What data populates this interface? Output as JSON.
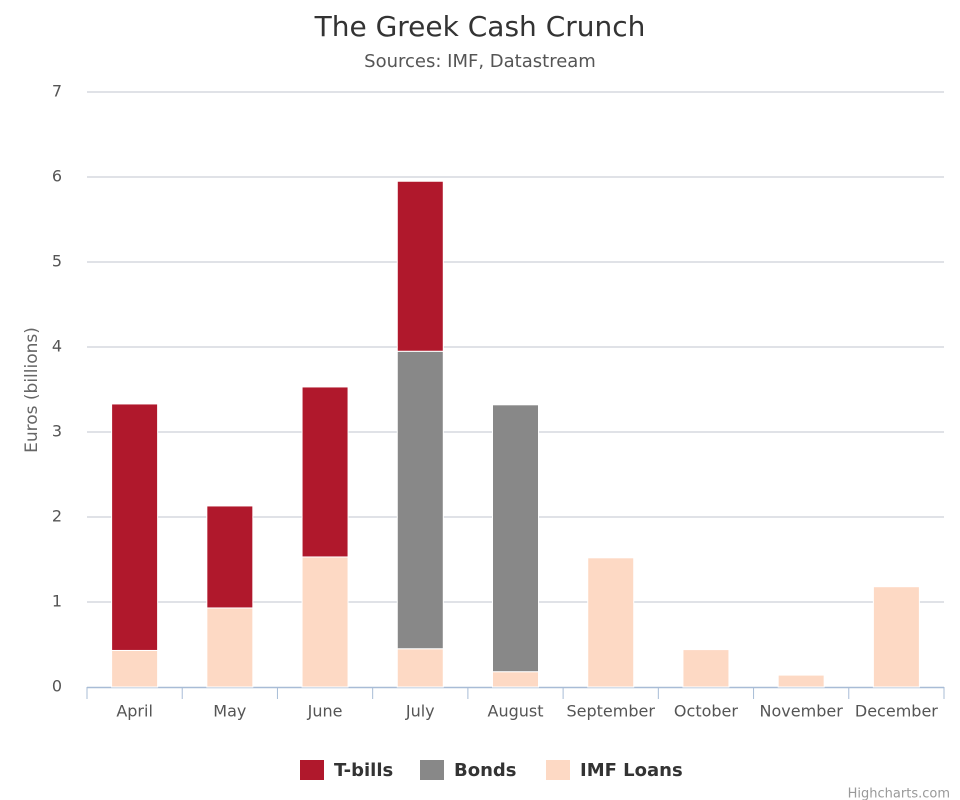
{
  "chart_data": {
    "type": "stacked-bar",
    "title": "The Greek Cash Crunch",
    "subtitle": "Sources: IMF, Datastream",
    "y_label": "Euros (billions)",
    "credit": "Highcharts.com",
    "categories": [
      "April",
      "May",
      "June",
      "July",
      "August",
      "September",
      "October",
      "November",
      "December"
    ],
    "series": [
      {
        "name": "T-bills",
        "color": "#b0182c",
        "values": [
          2.9,
          1.2,
          2.0,
          2.0,
          null,
          null,
          null,
          null,
          null
        ]
      },
      {
        "name": "Bonds",
        "color": "#888888",
        "values": [
          null,
          null,
          null,
          3.5,
          3.14,
          null,
          null,
          null,
          null
        ]
      },
      {
        "name": "IMF Loans",
        "color": "#fdd9c4",
        "values": [
          0.43,
          0.93,
          1.53,
          0.45,
          0.18,
          1.52,
          0.44,
          0.14,
          1.18
        ]
      }
    ],
    "ylim": [
      0,
      7
    ],
    "yticks": [
      0,
      1,
      2,
      3,
      4,
      5,
      6,
      7
    ],
    "grid": true
  }
}
